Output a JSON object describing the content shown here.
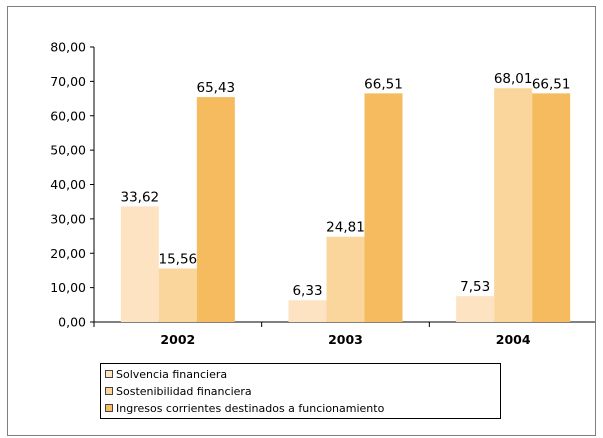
{
  "chart_data": {
    "type": "bar",
    "categories": [
      "2002",
      "2003",
      "2004"
    ],
    "series": [
      {
        "name": "Solvencia financiera",
        "values": [
          33.62,
          6.33,
          7.53
        ],
        "labels": [
          "33,62",
          "6,33",
          "7,53"
        ],
        "color": "#fde3c2"
      },
      {
        "name": "Sostenibilidad financiera",
        "values": [
          15.56,
          24.81,
          68.01
        ],
        "labels": [
          "15,56",
          "24,81",
          "68,01"
        ],
        "color": "#fbd69c"
      },
      {
        "name": "Ingresos corrientes destinados a funcionamiento",
        "values": [
          65.43,
          66.51,
          66.51
        ],
        "labels": [
          "65,43",
          "66,51",
          "66,51"
        ],
        "color": "#f5bb5e"
      }
    ],
    "ylim": [
      0,
      80
    ],
    "yticks": [
      0,
      10,
      20,
      30,
      40,
      50,
      60,
      70,
      80
    ],
    "ytick_labels": [
      "0,00",
      "10,00",
      "20,00",
      "30,00",
      "40,00",
      "50,00",
      "60,00",
      "70,00",
      "80,00"
    ],
    "title": "",
    "xlabel": "",
    "ylabel": "",
    "grid": false,
    "legend_position": "bottom"
  }
}
